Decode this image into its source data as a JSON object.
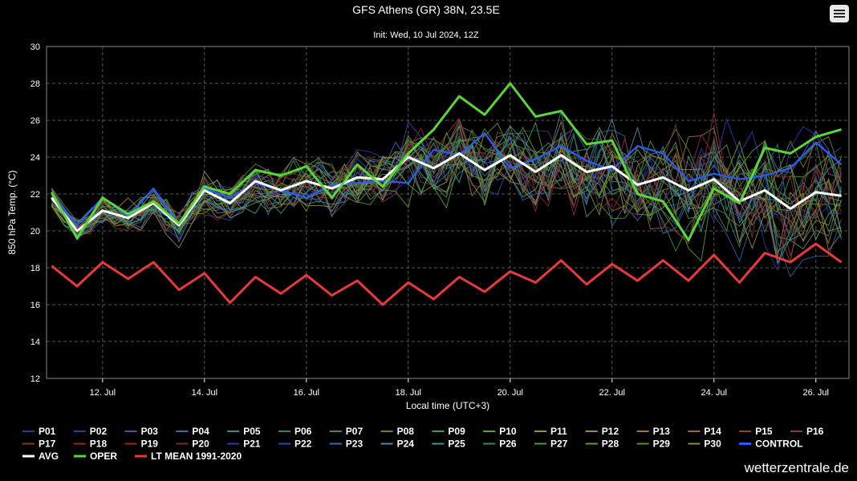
{
  "header": {
    "title": "GFS Athens (GR) 38N, 23.5E",
    "subtitle": "Init: Wed, 10 Jul 2024, 12Z"
  },
  "brand": "wetterzentrale.de",
  "colors": {
    "background": "#000000",
    "avg": "#ffffff",
    "oper": "#5ad43a",
    "control": "#2a5cff",
    "lt_mean": "#e83a3a",
    "members": [
      "#2a3a8c",
      "#24458c",
      "#2f5fa0",
      "#3f6f9a",
      "#3f8a8a",
      "#3f7a6a",
      "#4a8a3a",
      "#5a8a2a",
      "#4f9a3a",
      "#5aa03a",
      "#8a9a3a",
      "#a08a3a",
      "#9a7a3a",
      "#9a6a3a",
      "#8a4a2a",
      "#8a3a2a",
      "#7a3a2a",
      "#8a2a2a",
      "#8a2a3a",
      "#7a2a2a",
      "#2a3ab0",
      "#2a4aa0",
      "#3a6ab0",
      "#4a8aa0",
      "#3a9a8a",
      "#3a8a5a",
      "#4a9a3a",
      "#6a9a2a",
      "#5a8a3a",
      "#8a8a4a"
    ]
  },
  "chart_data": {
    "type": "line",
    "title": "GFS Athens (GR) 38N, 23.5E",
    "subtitle": "Init: Wed, 10 Jul 2024, 12Z",
    "xlabel": "Local time (UTC+3)",
    "ylabel": "850 hPa Temp. (°C)",
    "ylim": [
      12,
      30
    ],
    "y_ticks": [
      12,
      14,
      16,
      18,
      20,
      22,
      24,
      26,
      28,
      30
    ],
    "x_range_days": [
      10.9,
      26.65
    ],
    "x_ticks": [
      {
        "day": 12,
        "label": "12. Jul"
      },
      {
        "day": 14,
        "label": "14. Jul"
      },
      {
        "day": 16,
        "label": "16. Jul"
      },
      {
        "day": 18,
        "label": "18. Jul"
      },
      {
        "day": 20,
        "label": "20. Jul"
      },
      {
        "day": 22,
        "label": "22. Jul"
      },
      {
        "day": 24,
        "label": "24. Jul"
      },
      {
        "day": 26,
        "label": "26. Jul"
      }
    ],
    "grid": true,
    "legend_position": "bottom",
    "member_series": [
      "P01",
      "P02",
      "P03",
      "P04",
      "P05",
      "P06",
      "P07",
      "P08",
      "P09",
      "P10",
      "P11",
      "P12",
      "P13",
      "P14",
      "P15",
      "P16",
      "P17",
      "P18",
      "P19",
      "P20",
      "P21",
      "P22",
      "P23",
      "P24",
      "P25",
      "P26",
      "P27",
      "P28",
      "P29",
      "P30"
    ],
    "series": [
      {
        "name": "CONTROL",
        "x": [
          11,
          11.5,
          12,
          12.5,
          13,
          13.5,
          14,
          14.5,
          15,
          15.5,
          16,
          16.5,
          17,
          17.5,
          18,
          18.5,
          19,
          19.5,
          20,
          20.5,
          21,
          21.5,
          22,
          22.5,
          23,
          23.5,
          24,
          24.5,
          25,
          25.5,
          26,
          26.5
        ],
        "values": [
          22.0,
          20.3,
          21.8,
          20.8,
          22.3,
          20.3,
          22.3,
          21.8,
          22.6,
          22.2,
          21.8,
          22.5,
          22.6,
          22.7,
          22.6,
          24.4,
          24.1,
          25.3,
          23.4,
          23.9,
          24.6,
          23.8,
          23.3,
          24.6,
          24.2,
          22.7,
          23.1,
          22.8,
          23.0,
          23.4,
          24.8,
          23.6
        ]
      },
      {
        "name": "AVG",
        "x": [
          11,
          11.5,
          12,
          12.5,
          13,
          13.5,
          14,
          14.5,
          15,
          15.5,
          16,
          16.5,
          17,
          17.5,
          18,
          18.5,
          19,
          19.5,
          20,
          20.5,
          21,
          21.5,
          22,
          22.5,
          23,
          23.5,
          24,
          24.5,
          25,
          25.5,
          26,
          26.5
        ],
        "values": [
          21.8,
          20.0,
          21.1,
          20.7,
          21.5,
          20.3,
          22.2,
          21.5,
          22.7,
          22.2,
          22.7,
          22.3,
          22.9,
          22.8,
          24.0,
          23.4,
          24.2,
          23.3,
          24.1,
          23.2,
          24.1,
          23.2,
          23.5,
          22.5,
          22.9,
          22.2,
          22.8,
          21.6,
          22.2,
          21.2,
          22.1,
          21.9
        ]
      },
      {
        "name": "OPER",
        "x": [
          11,
          11.5,
          12,
          12.5,
          13,
          13.5,
          14,
          14.5,
          15,
          15.5,
          16,
          16.5,
          17,
          17.5,
          18,
          18.5,
          19,
          19.5,
          20,
          20.5,
          21,
          21.5,
          22,
          22.5,
          23,
          23.5,
          24,
          24.5,
          25,
          25.5,
          26,
          26.5
        ],
        "values": [
          22.1,
          19.6,
          21.8,
          20.9,
          21.6,
          20.4,
          22.4,
          22.0,
          23.3,
          23.0,
          23.5,
          21.8,
          23.6,
          22.4,
          24.2,
          25.5,
          27.3,
          26.3,
          28.0,
          26.2,
          26.5,
          24.7,
          24.9,
          22.0,
          21.6,
          19.5,
          22.3,
          21.5,
          24.5,
          24.2,
          25.1,
          25.5
        ]
      },
      {
        "name": "LT MEAN 1991-2020",
        "x": [
          11,
          11.5,
          12,
          12.5,
          13,
          13.5,
          14,
          14.5,
          15,
          15.5,
          16,
          16.5,
          17,
          17.5,
          18,
          18.5,
          19,
          19.5,
          20,
          20.5,
          21,
          21.5,
          22,
          22.5,
          23,
          23.5,
          24,
          24.5,
          25,
          25.5,
          26,
          26.5
        ],
        "values": [
          18.1,
          17.0,
          18.3,
          17.4,
          18.3,
          16.8,
          17.7,
          16.1,
          17.5,
          16.6,
          17.6,
          16.5,
          17.3,
          16.0,
          17.2,
          16.3,
          17.5,
          16.7,
          17.8,
          17.2,
          18.4,
          17.1,
          18.2,
          17.3,
          18.4,
          17.3,
          18.7,
          17.2,
          18.8,
          18.3,
          19.3,
          18.3
        ]
      }
    ],
    "legend": [
      "P01",
      "P02",
      "P03",
      "P04",
      "P05",
      "P06",
      "P07",
      "P08",
      "P09",
      "P10",
      "P11",
      "P12",
      "P13",
      "P14",
      "P15",
      "P16",
      "P17",
      "P18",
      "P19",
      "P20",
      "P21",
      "P22",
      "P23",
      "P24",
      "P25",
      "P26",
      "P27",
      "P28",
      "P29",
      "P30",
      "CONTROL",
      "AVG",
      "OPER",
      "LT MEAN 1991-2020"
    ]
  }
}
